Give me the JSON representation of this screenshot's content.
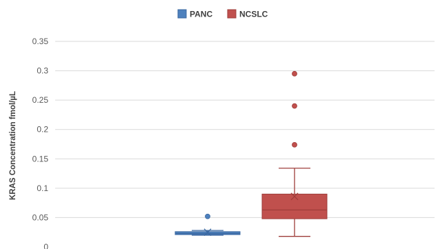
{
  "chart_data": {
    "type": "box",
    "title": "",
    "xlabel": "",
    "ylabel": "KRAS Concentration fmol/µL",
    "ylim": [
      0,
      0.35
    ],
    "yticks": [
      "0",
      "0.05",
      "0.1",
      "0.15",
      "0.2",
      "0.25",
      "0.3",
      "0.35"
    ],
    "grid": true,
    "legend_position": "top",
    "series": [
      {
        "name": "PANC",
        "color": "#4e81bd",
        "edge_color": "#3a67a0",
        "whisker_low": 0.02,
        "q1": 0.021,
        "median": 0.023,
        "q3": 0.026,
        "whisker_high": 0.028,
        "mean": 0.025,
        "outliers": [
          0.052
        ]
      },
      {
        "name": "NCSLC",
        "color": "#c0504d",
        "edge_color": "#9e3d3a",
        "whisker_low": 0.018,
        "q1": 0.048,
        "median": 0.063,
        "q3": 0.09,
        "whisker_high": 0.134,
        "mean": 0.086,
        "outliers": [
          0.174,
          0.24,
          0.295
        ]
      }
    ]
  }
}
